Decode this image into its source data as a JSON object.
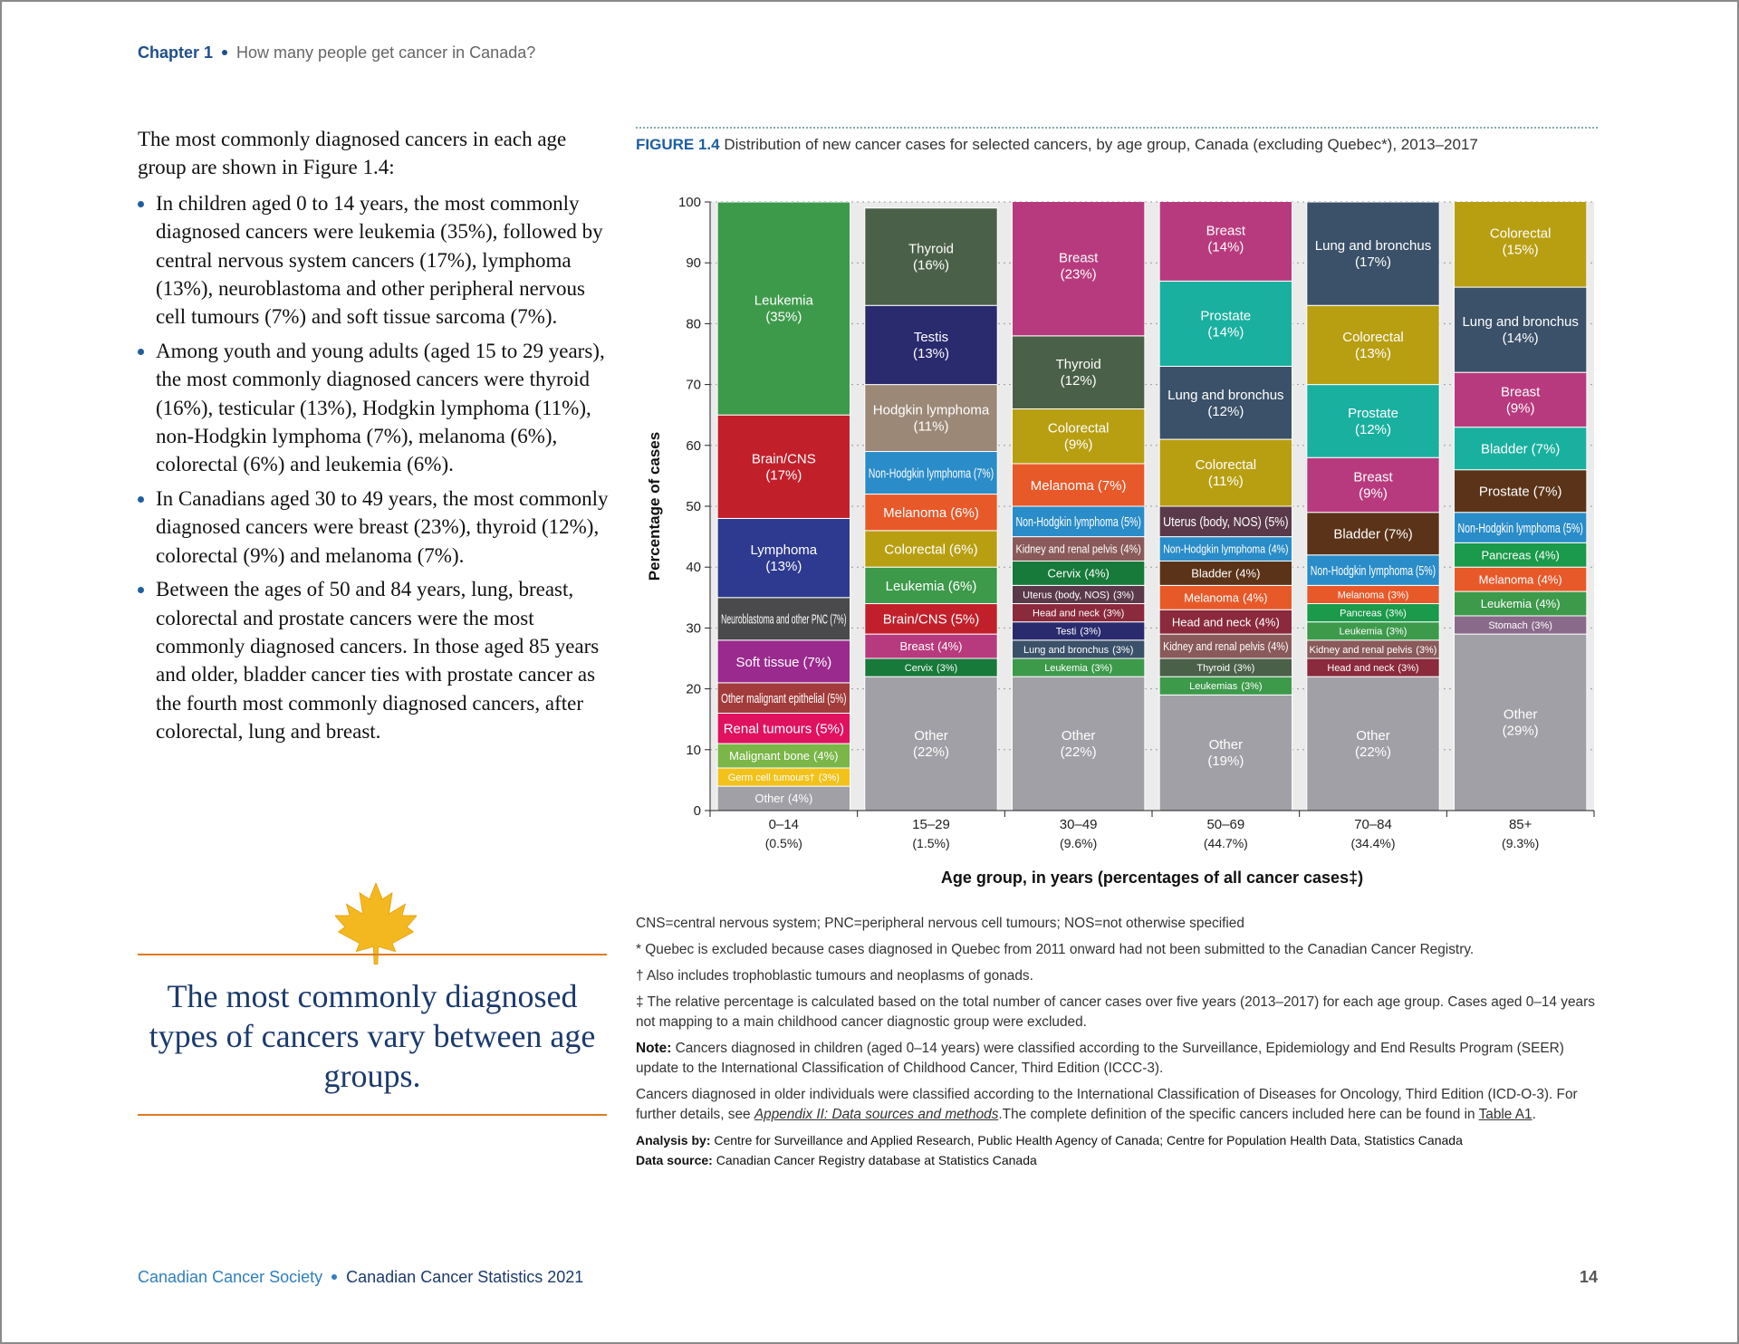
{
  "header": {
    "chapter": "Chapter 1",
    "subtitle": "How many people get cancer in Canada?"
  },
  "body": {
    "intro": "The most commonly diagnosed cancers in each age group are shown in Figure 1.4:",
    "bullets": [
      "In children aged 0 to 14 years, the most commonly diagnosed cancers were leukemia (35%), followed by central nervous system cancers (17%), lymphoma (13%), neuroblastoma and other peripheral nervous cell tumours (7%) and soft tissue sarcoma (7%).",
      "Among youth and young adults (aged 15 to 29 years), the most commonly diagnosed cancers were thyroid (16%), testicular (13%), Hodgkin lymphoma (11%), non-Hodgkin lymphoma (7%), melanoma (6%), colorectal (6%) and leukemia (6%).",
      "In Canadians aged 30 to 49 years, the most commonly diagnosed cancers were breast (23%), thyroid (12%), colorectal (9%) and melanoma (7%).",
      "Between the ages of 50 and 84 years, lung, breast, colorectal and prostate cancers were the most commonly diagnosed cancers. In those aged 85 years and older, bladder cancer ties with prostate cancer as the fourth most commonly diagnosed cancers, after colorectal, lung and breast."
    ],
    "callout": "The most commonly diagnosed types of cancers vary between age groups."
  },
  "chart_data": {
    "type": "bar",
    "stacked": true,
    "figure_label": "FIGURE 1.4",
    "title": "Distribution of new cancer cases for selected cancers, by age group, Canada (excluding Quebec*), 2013–2017",
    "ylabel": "Percentage of cases",
    "xlabel": "Age group, in years (percentages of all cancer cases‡)",
    "categories": [
      "0–14",
      "15–29",
      "30–49",
      "50–69",
      "70–84",
      "85+"
    ],
    "category_shares": [
      "(0.5%)",
      "(1.5%)",
      "(9.6%)",
      "(44.7%)",
      "(34.4%)",
      "(9.3%)"
    ],
    "ylim": [
      0,
      100
    ],
    "yticks": [
      0,
      10,
      20,
      30,
      40,
      50,
      60,
      70,
      80,
      90,
      100
    ],
    "grid": true,
    "columns": [
      {
        "segments": [
          {
            "name": "Other",
            "value": 4,
            "value_label": "(4%)",
            "color": "#a0a0a6"
          },
          {
            "name": "Germ cell tumours†",
            "value": 3,
            "value_label": "(3%)",
            "color": "#f2c21b"
          },
          {
            "name": "Malignant bone",
            "value": 4,
            "value_label": "(4%)",
            "color": "#7ab648"
          },
          {
            "name": "Renal tumours",
            "value": 5,
            "value_label": "(5%)",
            "color": "#e0115f"
          },
          {
            "name": "Other malignant epithelial",
            "value": 5,
            "value_label": "(5%)",
            "color": "#a23b3b"
          },
          {
            "name": "Soft tissue",
            "value": 7,
            "value_label": "(7%)",
            "color": "#9a2a8e"
          },
          {
            "name": "Neuroblastoma and other PNC",
            "value": 7,
            "value_label": "(7%)",
            "color": "#4a4a4c"
          },
          {
            "name": "Lymphoma",
            "value": 13,
            "value_label": "(13%)",
            "color": "#2e3a8f"
          },
          {
            "name": "Brain/CNS",
            "value": 17,
            "value_label": "(17%)",
            "color": "#c1202b"
          },
          {
            "name": "Leukemia",
            "value": 35,
            "value_label": "(35%)",
            "color": "#3d9a4b"
          }
        ]
      },
      {
        "segments": [
          {
            "name": "Other",
            "value": 22,
            "value_label": "(22%)",
            "color": "#a0a0a6"
          },
          {
            "name": "Cervix",
            "value": 3,
            "value_label": "(3%)",
            "color": "#17793a"
          },
          {
            "name": "Breast",
            "value": 4,
            "value_label": "(4%)",
            "color": "#b83a7e"
          },
          {
            "name": "Brain/CNS",
            "value": 5,
            "value_label": "(5%)",
            "color": "#c1202b"
          },
          {
            "name": "Leukemia",
            "value": 6,
            "value_label": "(6%)",
            "color": "#3d9a4b"
          },
          {
            "name": "Colorectal",
            "value": 6,
            "value_label": "(6%)",
            "color": "#b89f12"
          },
          {
            "name": "Melanoma",
            "value": 6,
            "value_label": "(6%)",
            "color": "#e8592a"
          },
          {
            "name": "Non-Hodgkin lymphoma",
            "value": 7,
            "value_label": "(7%)",
            "color": "#2a8cc8"
          },
          {
            "name": "Hodgkin lymphoma",
            "value": 11,
            "value_label": "(11%)",
            "color": "#9c8877"
          },
          {
            "name": "Testis",
            "value": 13,
            "value_label": "(13%)",
            "color": "#2a2a6e"
          },
          {
            "name": "Thyroid",
            "value": 16,
            "value_label": "(16%)",
            "color": "#4b6048"
          }
        ]
      },
      {
        "segments": [
          {
            "name": "Other",
            "value": 22,
            "value_label": "(22%)",
            "color": "#a0a0a6"
          },
          {
            "name": "Leukemia",
            "value": 3,
            "value_label": "(3%)",
            "color": "#3d9a4b"
          },
          {
            "name": "Lung and bronchus",
            "value": 3,
            "value_label": "(3%)",
            "color": "#3b5169"
          },
          {
            "name": "Testi",
            "value": 3,
            "value_label": "(3%)",
            "color": "#2a2a6e"
          },
          {
            "name": "Head and neck",
            "value": 3,
            "value_label": "(3%)",
            "color": "#8a2a3c"
          },
          {
            "name": "Uterus (body, NOS)",
            "value": 3,
            "value_label": "(3%)",
            "color": "#5a3a4a"
          },
          {
            "name": "Cervix",
            "value": 4,
            "value_label": "(4%)",
            "color": "#17793a"
          },
          {
            "name": "Kidney and renal pelvis",
            "value": 4,
            "value_label": "(4%)",
            "color": "#8a5a5a"
          },
          {
            "name": "Non-Hodgkin lymphoma",
            "value": 5,
            "value_label": "(5%)",
            "color": "#2a8cc8"
          },
          {
            "name": "Melanoma",
            "value": 7,
            "value_label": "(7%)",
            "color": "#e8592a"
          },
          {
            "name": "Colorectal",
            "value": 9,
            "value_label": "(9%)",
            "color": "#b89f12"
          },
          {
            "name": "Thyroid",
            "value": 12,
            "value_label": "(12%)",
            "color": "#4b6048"
          },
          {
            "name": "Breast",
            "value": 23,
            "value_label": "(23%)",
            "color": "#b83a7e"
          }
        ]
      },
      {
        "segments": [
          {
            "name": "Other",
            "value": 19,
            "value_label": "(19%)",
            "color": "#a0a0a6"
          },
          {
            "name": "Leukemias",
            "value": 3,
            "value_label": "(3%)",
            "color": "#3d9a4b"
          },
          {
            "name": "Thyroid",
            "value": 3,
            "value_label": "(3%)",
            "color": "#4b6048"
          },
          {
            "name": "Kidney and renal pelvis",
            "value": 4,
            "value_label": "(4%)",
            "color": "#8a5a5a"
          },
          {
            "name": "Head and neck",
            "value": 4,
            "value_label": "(4%)",
            "color": "#8a2a3c"
          },
          {
            "name": "Melanoma",
            "value": 4,
            "value_label": "(4%)",
            "color": "#e8592a"
          },
          {
            "name": "Bladder",
            "value": 4,
            "value_label": "(4%)",
            "color": "#5a3318"
          },
          {
            "name": "Non-Hodgkin lymphoma",
            "value": 4,
            "value_label": "(4%)",
            "color": "#2a8cc8"
          },
          {
            "name": "Uterus (body, NOS)",
            "value": 5,
            "value_label": "(5%)",
            "color": "#5a3a4a"
          },
          {
            "name": "Colorectal",
            "value": 11,
            "value_label": "(11%)",
            "color": "#b89f12"
          },
          {
            "name": "Lung and bronchus",
            "value": 12,
            "value_label": "(12%)",
            "color": "#3b5169"
          },
          {
            "name": "Prostate",
            "value": 14,
            "value_label": "(14%)",
            "color": "#1ab0a0"
          },
          {
            "name": "Breast",
            "value": 14,
            "value_label": "(14%)",
            "color": "#b83a7e"
          }
        ]
      },
      {
        "segments": [
          {
            "name": "Other",
            "value": 22,
            "value_label": "(22%)",
            "color": "#a0a0a6"
          },
          {
            "name": "Head and neck",
            "value": 3,
            "value_label": "(3%)",
            "color": "#8a2a3c"
          },
          {
            "name": "Kidney and renal pelvis",
            "value": 3,
            "value_label": "(3%)",
            "color": "#8a5a5a"
          },
          {
            "name": "Leukemia",
            "value": 3,
            "value_label": "(3%)",
            "color": "#3d9a4b"
          },
          {
            "name": "Pancreas",
            "value": 3,
            "value_label": "(3%)",
            "color": "#1a9a4a"
          },
          {
            "name": "Melanoma",
            "value": 3,
            "value_label": "(3%)",
            "color": "#e8592a"
          },
          {
            "name": "Non-Hodgkin lymphoma",
            "value": 5,
            "value_label": "(5%)",
            "color": "#2a8cc8"
          },
          {
            "name": "Bladder",
            "value": 7,
            "value_label": "(7%)",
            "color": "#5a3318"
          },
          {
            "name": "Breast",
            "value": 9,
            "value_label": "(9%)",
            "color": "#b83a7e"
          },
          {
            "name": "Prostate",
            "value": 12,
            "value_label": "(12%)",
            "color": "#1ab0a0"
          },
          {
            "name": "Colorectal",
            "value": 13,
            "value_label": "(13%)",
            "color": "#b89f12"
          },
          {
            "name": "Lung and bronchus",
            "value": 17,
            "value_label": "(17%)",
            "color": "#3b5169"
          }
        ]
      },
      {
        "segments": [
          {
            "name": "Other",
            "value": 29,
            "value_label": "(29%)",
            "color": "#a0a0a6"
          },
          {
            "name": "Stomach",
            "value": 3,
            "value_label": "(3%)",
            "color": "#8a6a8a"
          },
          {
            "name": "Leukemia",
            "value": 4,
            "value_label": "(4%)",
            "color": "#3d9a4b"
          },
          {
            "name": "Melanoma",
            "value": 4,
            "value_label": "(4%)",
            "color": "#e8592a"
          },
          {
            "name": "Pancreas",
            "value": 4,
            "value_label": "(4%)",
            "color": "#1a9a4a"
          },
          {
            "name": "Non-Hodgkin lymphoma",
            "value": 5,
            "value_label": "(5%)",
            "color": "#2a8cc8"
          },
          {
            "name": "Prostate",
            "value": 7,
            "value_label": "(7%)",
            "color": "#5a3318"
          },
          {
            "name": "Bladder",
            "value": 7,
            "value_label": "(7%)",
            "color": "#1ab0a0"
          },
          {
            "name": "Breast",
            "value": 9,
            "value_label": "(9%)",
            "color": "#b83a7e"
          },
          {
            "name": "Lung and bronchus",
            "value": 14,
            "value_label": "(14%)",
            "color": "#3b5169"
          },
          {
            "name": "Colorectal",
            "value": 15,
            "value_label": "(15%)",
            "color": "#b89f12"
          }
        ]
      }
    ]
  },
  "notes": [
    {
      "size": "normal",
      "runs": [
        {
          "style": "plain",
          "text": "CNS=central nervous system; PNC=peripheral nervous cell tumours; NOS=not otherwise specified"
        }
      ]
    },
    {
      "size": "normal",
      "runs": [
        {
          "style": "plain",
          "text": "* Quebec is excluded because cases diagnosed in Quebec from 2011 onward had not been submitted to the Canadian Cancer Registry."
        }
      ]
    },
    {
      "size": "normal",
      "runs": [
        {
          "style": "plain",
          "text": "† Also includes trophoblastic tumours and neoplasms of gonads."
        }
      ]
    },
    {
      "size": "normal",
      "runs": [
        {
          "style": "plain",
          "text": "‡ The relative percentage is calculated based on the total number of cancer cases over five years (2013–2017) for each age group. Cases aged 0–14 years not mapping to a main childhood cancer diagnostic group were excluded."
        }
      ]
    },
    {
      "size": "normal",
      "runs": [
        {
          "style": "bold",
          "text": "Note:"
        },
        {
          "style": "plain",
          "text": " Cancers diagnosed in children (aged 0–14 years) were classified according to the Surveillance, Epidemiology and End Results Program (SEER) update to the International Classification of Childhood Cancer, Third Edition (ICCC-3)."
        }
      ]
    },
    {
      "size": "normal",
      "runs": [
        {
          "style": "plain",
          "text": "Cancers diagnosed in older individuals were classified according to the International Classification of Diseases for Oncology, Third Edition (ICD-O-3). For further details, see "
        },
        {
          "style": "link-italic",
          "text": "Appendix II: Data sources and methods"
        },
        {
          "style": "plain",
          "text": ".The complete definition of the specific cancers included here can be found in "
        },
        {
          "style": "link",
          "text": "Table A1"
        },
        {
          "style": "plain",
          "text": "."
        }
      ]
    },
    {
      "size": "small",
      "runs": [
        {
          "style": "bold",
          "text": "Analysis by:"
        },
        {
          "style": "plain",
          "text": " Centre for Surveillance and Applied Research, Public Health Agency of Canada; Centre for Population Health Data, Statistics Canada"
        }
      ]
    },
    {
      "size": "small",
      "runs": [
        {
          "style": "bold",
          "text": "Data source:"
        },
        {
          "style": "plain",
          "text": " Canadian Cancer Registry database at Statistics Canada"
        }
      ]
    }
  ],
  "footer": {
    "org": "Canadian Cancer Society",
    "publication": "Canadian Cancer Statistics 2021",
    "page": "14"
  }
}
